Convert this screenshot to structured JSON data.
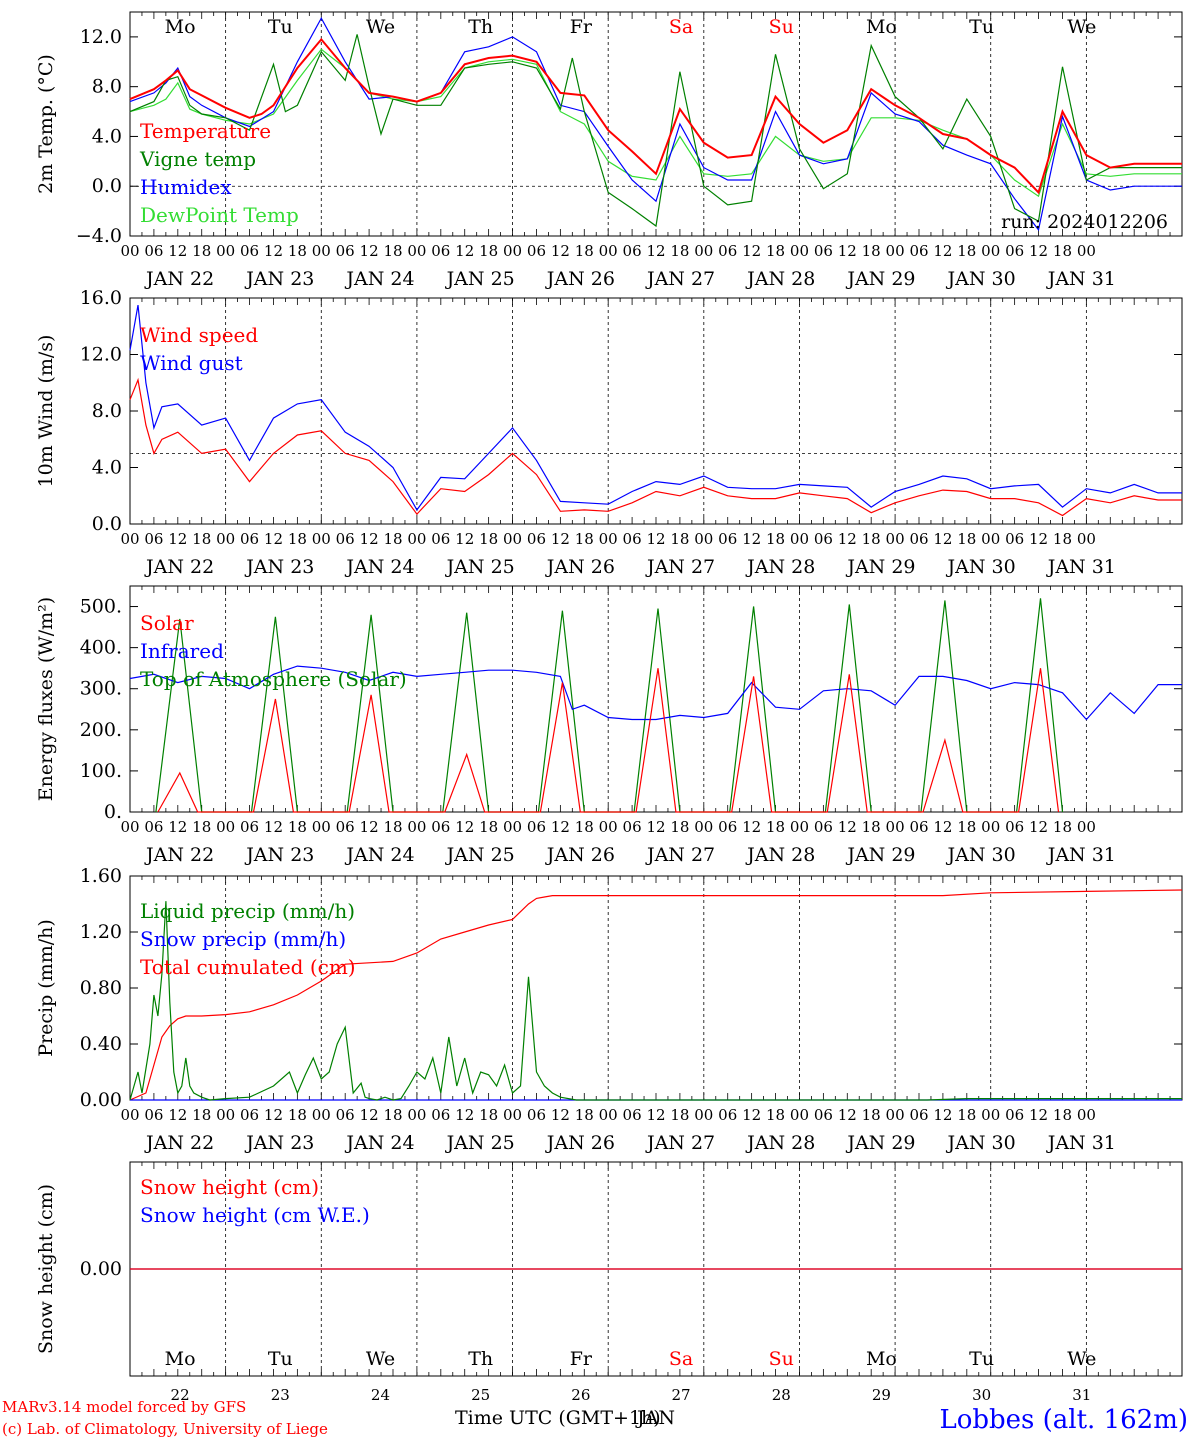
{
  "days": [
    "Mo",
    "Tu",
    "We",
    "Th",
    "Fr",
    "Sa",
    "Su",
    "Mo",
    "Tu",
    "We"
  ],
  "day_colors": [
    "#000000",
    "#000000",
    "#000000",
    "#000000",
    "#000000",
    "#ff0000",
    "#ff0000",
    "#000000",
    "#000000",
    "#000000"
  ],
  "dates": [
    "JAN 22",
    "JAN 23",
    "JAN 24",
    "JAN 25",
    "JAN 26",
    "JAN 27",
    "JAN 28",
    "JAN 29",
    "JAN 30",
    "JAN 31"
  ],
  "day_numbers": [
    "22",
    "23",
    "24",
    "25",
    "26",
    "27",
    "28",
    "29",
    "30",
    "31"
  ],
  "hour_labels": [
    "00",
    "06",
    "12",
    "18"
  ],
  "footer": {
    "credit_line1": "MARv3.14 model forced by GFS",
    "credit_line2": "(c) Lab. of Climatology, University of Liege",
    "time_label": "Time UTC (GMT+1h)",
    "month_label": "JAN",
    "station": "Lobbes (alt. 162m)"
  },
  "colors": {
    "red": "#ff0000",
    "green": "#008000",
    "blue": "#0000ff",
    "lightgreen": "#33dd33",
    "purple": "#800080"
  },
  "chart_data": [
    {
      "type": "line",
      "ylabel": "2m Temp. (°C)",
      "ylim": [
        -4,
        14
      ],
      "yticks": [
        "12.0",
        "8.0",
        "4.0",
        "0.0",
        "−4.0"
      ],
      "ytick_values": [
        12,
        8,
        4,
        0,
        -4
      ],
      "ref_line": 0,
      "run_label": "run: 2024012206",
      "x_unit": "hours since JAN 22 00 UTC",
      "series": [
        {
          "name": "Temperature",
          "color": "#ff0000",
          "x": [
            0,
            6,
            9,
            12,
            15,
            18,
            24,
            30,
            33,
            36,
            42,
            48,
            54,
            60,
            66,
            72,
            78,
            84,
            90,
            96,
            102,
            108,
            114,
            120,
            126,
            132,
            138,
            144,
            150,
            156,
            162,
            168,
            174,
            180,
            186,
            192,
            198,
            204,
            210,
            216,
            222,
            228,
            234,
            240,
            246,
            252,
            258,
            264
          ],
          "y": [
            7,
            7.8,
            8.5,
            9.3,
            7.8,
            7.3,
            6.3,
            5.5,
            5.8,
            6.5,
            9.5,
            11.8,
            9.5,
            7.5,
            7.2,
            6.8,
            7.5,
            9.8,
            10.3,
            10.5,
            10,
            7.5,
            7.3,
            4.5,
            2.8,
            1,
            6.2,
            3.5,
            2.3,
            2.5,
            7.2,
            5,
            3.5,
            4.5,
            7.8,
            6.5,
            5.5,
            4.2,
            3.8,
            2.5,
            1.5,
            -0.5,
            6,
            2.5,
            1.5,
            1.8,
            1.8,
            1.8
          ]
        },
        {
          "name": "Vigne temp",
          "color": "#008000",
          "x": [
            0,
            6,
            9,
            12,
            15,
            18,
            24,
            30,
            36,
            39,
            42,
            48,
            54,
            57,
            60,
            63,
            66,
            72,
            78,
            84,
            90,
            96,
            102,
            108,
            111,
            114,
            120,
            126,
            132,
            138,
            144,
            150,
            156,
            162,
            168,
            174,
            180,
            186,
            192,
            198,
            204,
            210,
            216,
            222,
            228,
            234,
            240,
            246,
            252,
            258,
            264
          ],
          "y": [
            6,
            6.8,
            8.5,
            8.8,
            6.5,
            5.8,
            5.5,
            4.5,
            9.8,
            6,
            6.5,
            10.8,
            8.5,
            12.2,
            8,
            4.2,
            7,
            6.5,
            6.5,
            9.5,
            9.8,
            10,
            9.5,
            6.2,
            10.3,
            6,
            -0.5,
            -1.8,
            -3.2,
            9.2,
            0,
            -1.5,
            -1.2,
            10.6,
            3,
            -0.2,
            1,
            11.3,
            7.2,
            5.5,
            3,
            7,
            4,
            -1.8,
            -2.8,
            9.6,
            0.5,
            1.5,
            1.5,
            1.5,
            1.5
          ]
        },
        {
          "name": "Humidex",
          "color": "#0000ff",
          "x": [
            0,
            6,
            9,
            12,
            15,
            18,
            24,
            30,
            36,
            42,
            48,
            54,
            60,
            66,
            72,
            78,
            84,
            90,
            96,
            102,
            108,
            114,
            120,
            126,
            132,
            138,
            144,
            150,
            156,
            162,
            168,
            174,
            180,
            186,
            192,
            198,
            204,
            210,
            216,
            222,
            228,
            234,
            240,
            246,
            252,
            258,
            264
          ],
          "y": [
            6.8,
            7.5,
            8.3,
            9.5,
            7.2,
            6.5,
            5.5,
            4.8,
            6,
            10,
            13.5,
            10,
            7,
            7.2,
            6.8,
            7.5,
            10.8,
            11.2,
            12,
            10.8,
            6.5,
            6,
            3.2,
            0.5,
            -1.2,
            5,
            1.5,
            0.5,
            0.5,
            6,
            2.5,
            1.8,
            2.2,
            7.5,
            5.8,
            5.2,
            3.3,
            2.5,
            1.8,
            -1,
            -3.5,
            5.6,
            0.5,
            -0.3,
            0,
            0,
            0
          ]
        },
        {
          "name": "DewPoint Temp",
          "color": "#33dd33",
          "x": [
            0,
            6,
            9,
            12,
            15,
            18,
            24,
            30,
            36,
            42,
            48,
            54,
            60,
            66,
            72,
            78,
            84,
            90,
            96,
            102,
            108,
            114,
            120,
            126,
            132,
            138,
            144,
            150,
            156,
            162,
            168,
            174,
            180,
            186,
            192,
            198,
            204,
            210,
            216,
            222,
            228,
            234,
            240,
            246,
            252,
            258,
            264
          ],
          "y": [
            6,
            6.5,
            7,
            8.3,
            6.2,
            5.8,
            5.3,
            5,
            5.8,
            8.5,
            11,
            9.5,
            7.5,
            7,
            6.8,
            7.2,
            9.5,
            10,
            10.2,
            9.8,
            6,
            5,
            2,
            0.8,
            0.5,
            4,
            1,
            0.8,
            1,
            4,
            2.5,
            2,
            2.2,
            5.5,
            5.5,
            5.3,
            4.5,
            3.8,
            2.5,
            0.5,
            -0.8,
            5,
            1,
            0.8,
            1,
            1,
            1
          ]
        }
      ]
    },
    {
      "type": "line",
      "ylabel": "10m Wind (m/s)",
      "ylim": [
        0,
        16
      ],
      "yticks": [
        "16.0",
        "12.0",
        "8.0",
        "4.0",
        "0.0"
      ],
      "ytick_values": [
        16,
        12,
        8,
        4,
        0
      ],
      "ref_line": 5,
      "series": [
        {
          "name": "Wind speed",
          "color": "#ff0000",
          "x": [
            0,
            2,
            4,
            6,
            8,
            12,
            18,
            24,
            30,
            36,
            42,
            48,
            54,
            60,
            66,
            72,
            78,
            84,
            90,
            96,
            102,
            108,
            114,
            120,
            126,
            132,
            138,
            144,
            150,
            156,
            162,
            168,
            174,
            180,
            186,
            192,
            198,
            204,
            210,
            216,
            222,
            228,
            234,
            240,
            246,
            252,
            258,
            264
          ],
          "y": [
            8.8,
            10.2,
            7,
            5,
            6,
            6.5,
            5,
            5.3,
            3,
            5,
            6.3,
            6.6,
            5,
            4.5,
            3,
            0.7,
            2.5,
            2.3,
            3.5,
            5,
            3.5,
            0.9,
            1,
            0.9,
            1.5,
            2.3,
            2,
            2.6,
            2,
            1.8,
            1.8,
            2.2,
            2,
            1.8,
            0.8,
            1.5,
            2,
            2.4,
            2.3,
            1.8,
            1.8,
            1.5,
            0.6,
            1.8,
            1.5,
            2,
            1.7,
            1.7
          ]
        },
        {
          "name": "Wind gust",
          "color": "#0000ff",
          "x": [
            0,
            2,
            4,
            6,
            8,
            12,
            18,
            24,
            30,
            36,
            42,
            48,
            54,
            60,
            66,
            72,
            78,
            84,
            90,
            96,
            102,
            108,
            114,
            120,
            126,
            132,
            138,
            144,
            150,
            156,
            162,
            168,
            174,
            180,
            186,
            192,
            198,
            204,
            210,
            216,
            222,
            228,
            234,
            240,
            246,
            252,
            258,
            264
          ],
          "y": [
            12.3,
            15.5,
            10,
            6.8,
            8.3,
            8.5,
            7,
            7.5,
            4.5,
            7.5,
            8.5,
            8.8,
            6.5,
            5.5,
            4,
            1,
            3.3,
            3.2,
            5,
            6.8,
            4.5,
            1.6,
            1.5,
            1.4,
            2.3,
            3,
            2.8,
            3.4,
            2.6,
            2.5,
            2.5,
            2.8,
            2.7,
            2.6,
            1.2,
            2.3,
            2.8,
            3.4,
            3.2,
            2.5,
            2.7,
            2.8,
            1.2,
            2.5,
            2.2,
            2.8,
            2.2,
            2.2
          ]
        }
      ]
    },
    {
      "type": "line",
      "ylabel": "Energy fluxes (W/m²)",
      "ylim": [
        0,
        550
      ],
      "yticks": [
        "500.",
        "400.",
        "300.",
        "200.",
        "100.",
        "0."
      ],
      "ytick_values": [
        500,
        400,
        300,
        200,
        100,
        0
      ],
      "ref_line": null,
      "series": [
        {
          "name": "Solar",
          "color": "#ff0000",
          "daily_peaks": [
            95,
            275,
            285,
            140,
            315,
            350,
            330,
            335,
            175,
            350
          ]
        },
        {
          "name": "Infrared",
          "color": "#0000ff",
          "x": [
            0,
            6,
            12,
            18,
            24,
            30,
            36,
            42,
            48,
            54,
            60,
            66,
            72,
            78,
            84,
            90,
            96,
            102,
            108,
            111,
            114,
            120,
            126,
            132,
            138,
            144,
            150,
            156,
            162,
            168,
            174,
            180,
            186,
            192,
            198,
            204,
            210,
            216,
            222,
            228,
            234,
            240,
            246,
            252,
            258,
            264
          ],
          "y": [
            325,
            335,
            315,
            330,
            325,
            300,
            335,
            355,
            350,
            340,
            320,
            340,
            330,
            335,
            340,
            345,
            345,
            340,
            330,
            250,
            260,
            230,
            225,
            225,
            235,
            230,
            240,
            315,
            255,
            250,
            295,
            300,
            295,
            260,
            330,
            330,
            320,
            300,
            315,
            310,
            290,
            225,
            290,
            240,
            310,
            310
          ]
        },
        {
          "name": "Top of Atmosphere (Solar)",
          "color": "#008000",
          "daily_peaks": [
            470,
            475,
            480,
            485,
            490,
            495,
            500,
            505,
            515,
            520
          ]
        }
      ]
    },
    {
      "type": "line",
      "ylabel": "Precip (mm/h)",
      "ylim": [
        0,
        1.6
      ],
      "yticks": [
        "1.60",
        "1.20",
        "0.80",
        "0.40",
        "0.00"
      ],
      "ytick_values": [
        1.6,
        1.2,
        0.8,
        0.4,
        0
      ],
      "ref_line": null,
      "series": [
        {
          "name": "Liquid precip (mm/h)",
          "color": "#008000",
          "x": [
            0,
            2,
            3,
            5,
            6,
            7,
            8,
            9,
            10,
            11,
            12,
            13,
            14,
            15,
            16,
            18,
            20,
            24,
            30,
            36,
            40,
            42,
            44,
            46,
            48,
            50,
            52,
            54,
            56,
            58,
            59,
            60,
            62,
            64,
            66,
            68,
            70,
            72,
            74,
            76,
            78,
            80,
            82,
            84,
            86,
            88,
            90,
            92,
            94,
            96,
            98,
            100,
            102,
            104,
            106,
            108,
            112,
            118,
            120,
            130,
            150,
            170,
            190,
            200,
            210,
            220,
            230,
            240,
            250,
            260,
            264
          ],
          "y": [
            0,
            0.2,
            0.05,
            0.4,
            0.75,
            0.6,
            0.9,
            1.42,
            0.7,
            0.2,
            0.05,
            0.1,
            0.3,
            0.1,
            0.05,
            0.02,
            0,
            0.01,
            0.02,
            0.1,
            0.2,
            0.05,
            0.18,
            0.3,
            0.15,
            0.2,
            0.4,
            0.52,
            0.05,
            0.12,
            0.02,
            0.01,
            0,
            0.02,
            0,
            0.01,
            0.1,
            0.2,
            0.15,
            0.3,
            0.05,
            0.45,
            0.1,
            0.3,
            0.05,
            0.2,
            0.18,
            0.1,
            0.25,
            0.05,
            0.1,
            0.88,
            0.2,
            0.1,
            0.05,
            0.02,
            0,
            0,
            0,
            0,
            0,
            0,
            0,
            0,
            0.01,
            0.01,
            0.01,
            0.01,
            0.01,
            0.01,
            0.01
          ]
        },
        {
          "name": "Snow precip (mm/h)",
          "color": "#0000ff",
          "x": [
            0,
            264
          ],
          "y": [
            0,
            0
          ]
        },
        {
          "name": "Total cumulated (cm)",
          "color": "#ff0000",
          "x": [
            0,
            4,
            6,
            8,
            10,
            12,
            14,
            18,
            24,
            30,
            36,
            42,
            48,
            54,
            60,
            66,
            72,
            78,
            84,
            90,
            96,
            100,
            102,
            104,
            106,
            108,
            120,
            150,
            180,
            204,
            216,
            240,
            264
          ],
          "y": [
            0,
            0.05,
            0.25,
            0.45,
            0.53,
            0.58,
            0.6,
            0.6,
            0.61,
            0.63,
            0.68,
            0.75,
            0.85,
            0.97,
            0.98,
            0.99,
            1.05,
            1.15,
            1.2,
            1.25,
            1.29,
            1.4,
            1.44,
            1.45,
            1.46,
            1.46,
            1.46,
            1.46,
            1.46,
            1.46,
            1.48,
            1.49,
            1.5
          ]
        }
      ]
    },
    {
      "type": "line",
      "ylabel": "Snow height (cm)",
      "ylim": [
        -1,
        1
      ],
      "yticks": [
        "0.00"
      ],
      "ytick_values": [
        0
      ],
      "ref_line": null,
      "series": [
        {
          "name": "Snow height (cm)",
          "color": "#ff0000",
          "x": [
            0,
            264
          ],
          "y": [
            0,
            0
          ]
        },
        {
          "name": "Snow height (cm W.E.)",
          "color": "#0000ff",
          "x": [
            0,
            264
          ],
          "y": [
            0,
            0
          ]
        }
      ]
    }
  ]
}
